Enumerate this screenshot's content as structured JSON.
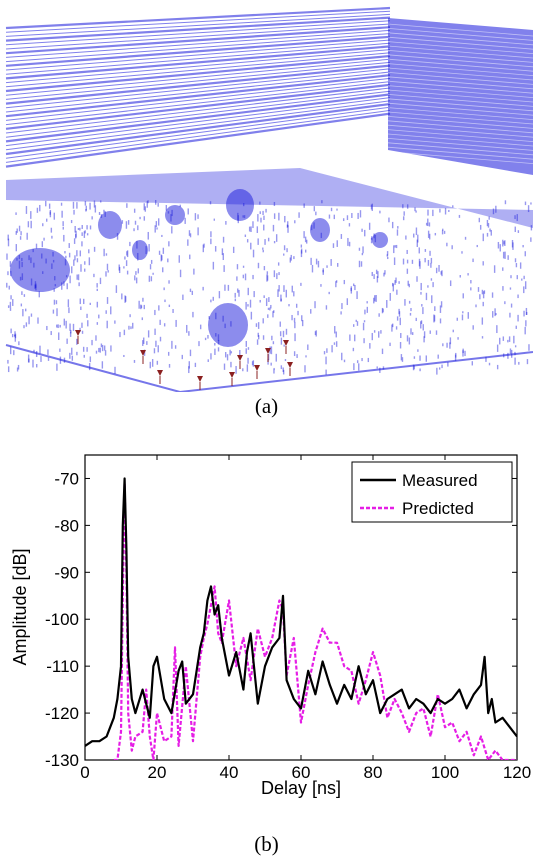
{
  "panel_a": {
    "caption": "(a)",
    "colors": {
      "points": "#1a1adc",
      "markers": "#8b2020",
      "background": "#ffffff"
    },
    "icon": "point-cloud-3d-scene"
  },
  "panel_b": {
    "caption": "(b)"
  },
  "chart_data": {
    "type": "line",
    "title": "",
    "xlabel": "Delay [ns]",
    "ylabel": "Amplitude [dB]",
    "xlim": [
      0,
      120
    ],
    "ylim": [
      -130,
      -65
    ],
    "xticks": [
      "0",
      "20",
      "40",
      "60",
      "80",
      "100",
      "120"
    ],
    "yticks": [
      "-70",
      "-80",
      "-90",
      "-100",
      "-110",
      "-120",
      "-130"
    ],
    "grid": false,
    "legend_position": "top-right",
    "series": [
      {
        "name": "Measured",
        "color": "#000000",
        "style": "solid",
        "x": [
          0,
          2,
          4,
          6,
          8,
          9,
          10,
          10.5,
          11,
          11.5,
          12,
          13,
          14,
          16,
          18,
          19,
          20,
          22,
          24,
          26,
          27,
          28,
          30,
          32,
          33,
          34,
          35,
          36,
          37,
          38,
          40,
          42,
          44,
          45,
          46,
          48,
          50,
          52,
          54,
          55,
          56,
          58,
          60,
          62,
          64,
          66,
          68,
          70,
          72,
          74,
          76,
          78,
          80,
          82,
          84,
          86,
          88,
          90,
          92,
          94,
          96,
          98,
          100,
          102,
          104,
          106,
          108,
          110,
          111,
          112,
          113,
          114,
          116,
          118,
          120
        ],
        "y": [
          -127,
          -126,
          -126,
          -125,
          -121,
          -117,
          -110,
          -80,
          -70,
          -85,
          -108,
          -117,
          -120,
          -115,
          -121,
          -110,
          -108,
          -117,
          -120,
          -111,
          -109,
          -118,
          -116,
          -106,
          -103,
          -96,
          -93,
          -99,
          -97,
          -104,
          -112,
          -107,
          -115,
          -107,
          -103,
          -118,
          -110,
          -106,
          -104,
          -95,
          -113,
          -117,
          -119,
          -111,
          -116,
          -109,
          -114,
          -118,
          -114,
          -117,
          -110,
          -116,
          -113,
          -120,
          -117,
          -116,
          -115,
          -119,
          -117,
          -118,
          -120,
          -117,
          -118,
          -117,
          -115,
          -119,
          -116,
          -114,
          -108,
          -120,
          -117,
          -122,
          -121,
          -123,
          -125
        ]
      },
      {
        "name": "Predicted",
        "color": "#e51ee5",
        "style": "dashed",
        "x": [
          8,
          9,
          10,
          10.5,
          11,
          11.5,
          12,
          13,
          14,
          16,
          17,
          18,
          19,
          20,
          22,
          24,
          25,
          26,
          28,
          30,
          32,
          33,
          34,
          35,
          36,
          37,
          38,
          40,
          42,
          44,
          46,
          48,
          50,
          52,
          54,
          55,
          56,
          58,
          60,
          62,
          64,
          66,
          68,
          70,
          72,
          74,
          76,
          78,
          80,
          82,
          84,
          86,
          88,
          90,
          92,
          94,
          96,
          98,
          100,
          102,
          104,
          106,
          108,
          110,
          112,
          114,
          116,
          118,
          120
        ],
        "y": [
          -130,
          -130,
          -124,
          -95,
          -71,
          -90,
          -120,
          -128,
          -125,
          -124,
          -115,
          -125,
          -130,
          -120,
          -126,
          -125,
          -106,
          -127,
          -110,
          -126,
          -108,
          -104,
          -101,
          -97,
          -93,
          -103,
          -105,
          -96,
          -110,
          -104,
          -113,
          -102,
          -108,
          -104,
          -96,
          -98,
          -112,
          -104,
          -122,
          -114,
          -107,
          -102,
          -105,
          -105,
          -110,
          -111,
          -118,
          -113,
          -107,
          -112,
          -121,
          -117,
          -120,
          -124,
          -120,
          -119,
          -125,
          -116,
          -123,
          -122,
          -126,
          -124,
          -129,
          -125,
          -130,
          -128,
          -130,
          -130,
          -130
        ]
      }
    ]
  }
}
